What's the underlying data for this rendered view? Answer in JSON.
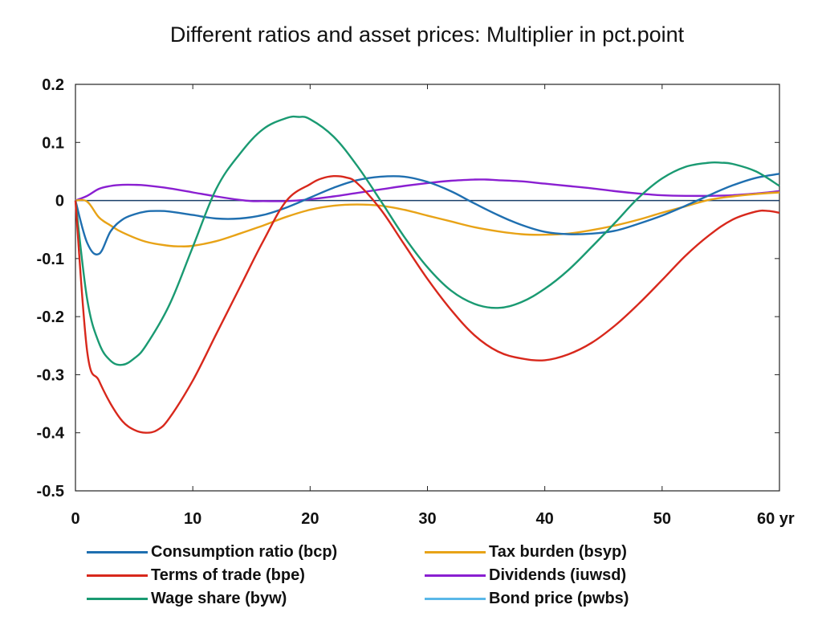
{
  "chart_data": {
    "type": "line",
    "title": "Different ratios and asset prices: Multiplier in pct.point",
    "xlabel": "",
    "ylabel": "",
    "x_unit": "yr",
    "xlim": [
      0,
      60
    ],
    "ylim": [
      -0.5,
      0.2
    ],
    "xticks": [
      0,
      10,
      20,
      30,
      40,
      50,
      60
    ],
    "xtick_labels": [
      "0",
      "10",
      "20",
      "30",
      "40",
      "50",
      "60 yr"
    ],
    "yticks": [
      0.2,
      0.1,
      0,
      -0.1,
      -0.2,
      -0.3,
      -0.4,
      -0.5
    ],
    "ytick_labels": [
      "0.2",
      "0.1",
      "0",
      "-0.1",
      "-0.2",
      "-0.3",
      "-0.4",
      "-0.5"
    ],
    "grid": false,
    "legend_position": "bottom",
    "series": [
      {
        "name": "Consumption ratio (bcp)",
        "color": "#1f6fb0",
        "x": [
          0,
          1,
          2,
          3,
          4,
          5,
          6,
          7,
          8,
          10,
          12,
          14,
          16,
          18,
          20,
          22,
          24,
          26,
          28,
          30,
          32,
          34,
          36,
          38,
          40,
          42,
          44,
          46,
          48,
          50,
          52,
          54,
          56,
          58,
          60
        ],
        "y": [
          0,
          -0.073,
          -0.092,
          -0.053,
          -0.033,
          -0.024,
          -0.019,
          -0.018,
          -0.019,
          -0.025,
          -0.031,
          -0.031,
          -0.025,
          -0.012,
          0.005,
          0.022,
          0.035,
          0.041,
          0.041,
          0.032,
          0.016,
          -0.005,
          -0.025,
          -0.042,
          -0.054,
          -0.058,
          -0.057,
          -0.052,
          -0.04,
          -0.026,
          -0.009,
          0.009,
          0.026,
          0.039,
          0.046
        ]
      },
      {
        "name": "Terms of trade (bpe)",
        "color": "#d8281c",
        "x": [
          0,
          1,
          2,
          3,
          4,
          5,
          6,
          7,
          8,
          10,
          12,
          14,
          16,
          18,
          20,
          21,
          22,
          23,
          24,
          26,
          28,
          30,
          32,
          34,
          36,
          38,
          40,
          42,
          44,
          46,
          48,
          50,
          52,
          54,
          56,
          58,
          59,
          60
        ],
        "y": [
          0,
          -0.26,
          -0.31,
          -0.35,
          -0.38,
          -0.395,
          -0.4,
          -0.395,
          -0.375,
          -0.31,
          -0.23,
          -0.15,
          -0.07,
          0.0,
          0.028,
          0.038,
          0.042,
          0.04,
          0.03,
          -0.015,
          -0.075,
          -0.135,
          -0.188,
          -0.232,
          -0.26,
          -0.272,
          -0.275,
          -0.265,
          -0.245,
          -0.215,
          -0.178,
          -0.137,
          -0.095,
          -0.06,
          -0.033,
          -0.019,
          -0.018,
          -0.021
        ]
      },
      {
        "name": "Wage share (byw)",
        "color": "#1a9a72",
        "x": [
          0,
          1,
          2,
          3,
          4,
          5,
          6,
          8,
          10,
          12,
          14,
          16,
          18,
          19,
          20,
          22,
          24,
          26,
          28,
          30,
          32,
          34,
          36,
          38,
          40,
          42,
          44,
          46,
          48,
          50,
          52,
          54,
          55,
          56,
          58,
          60
        ],
        "y": [
          0,
          -0.17,
          -0.245,
          -0.276,
          -0.283,
          -0.272,
          -0.25,
          -0.18,
          -0.08,
          0.02,
          0.08,
          0.123,
          0.142,
          0.144,
          0.14,
          0.11,
          0.06,
          0.0,
          -0.062,
          -0.115,
          -0.155,
          -0.178,
          -0.185,
          -0.175,
          -0.152,
          -0.12,
          -0.08,
          -0.038,
          0.005,
          0.038,
          0.058,
          0.065,
          0.065,
          0.063,
          0.05,
          0.025
        ]
      },
      {
        "name": "Tax burden (bsyp)",
        "color": "#e8a317",
        "x": [
          0,
          1,
          2,
          3,
          4,
          6,
          8,
          9,
          10,
          12,
          14,
          16,
          18,
          20,
          22,
          24,
          26,
          28,
          30,
          32,
          34,
          36,
          38,
          40,
          42,
          44,
          46,
          48,
          50,
          52,
          54,
          56,
          58,
          60
        ],
        "y": [
          0,
          -0.002,
          -0.029,
          -0.043,
          -0.055,
          -0.071,
          -0.078,
          -0.079,
          -0.078,
          -0.07,
          -0.057,
          -0.043,
          -0.028,
          -0.016,
          -0.009,
          -0.007,
          -0.009,
          -0.016,
          -0.026,
          -0.036,
          -0.046,
          -0.053,
          -0.058,
          -0.059,
          -0.057,
          -0.051,
          -0.043,
          -0.033,
          -0.021,
          -0.01,
          0.001,
          0.007,
          0.011,
          0.014
        ]
      },
      {
        "name": "Dividends (iuwsd)",
        "color": "#8a1fd1",
        "x": [
          0,
          1,
          2,
          3,
          4,
          5,
          6,
          8,
          10,
          12,
          14,
          15,
          16,
          18,
          20,
          22,
          24,
          26,
          28,
          30,
          32,
          34,
          35,
          36,
          38,
          40,
          42,
          44,
          46,
          48,
          50,
          52,
          54,
          56,
          58,
          60
        ],
        "y": [
          0,
          0.008,
          0.02,
          0.025,
          0.027,
          0.027,
          0.026,
          0.021,
          0.014,
          0.007,
          0.001,
          -0.001,
          -0.001,
          -0.001,
          0.002,
          0.007,
          0.013,
          0.019,
          0.025,
          0.03,
          0.034,
          0.036,
          0.036,
          0.035,
          0.033,
          0.029,
          0.025,
          0.021,
          0.016,
          0.012,
          0.009,
          0.008,
          0.008,
          0.009,
          0.012,
          0.016
        ]
      },
      {
        "name": "Bond price (pwbs)",
        "color": "#5ab8e8",
        "x": [
          0,
          60
        ],
        "y": [
          0,
          0
        ]
      }
    ]
  }
}
